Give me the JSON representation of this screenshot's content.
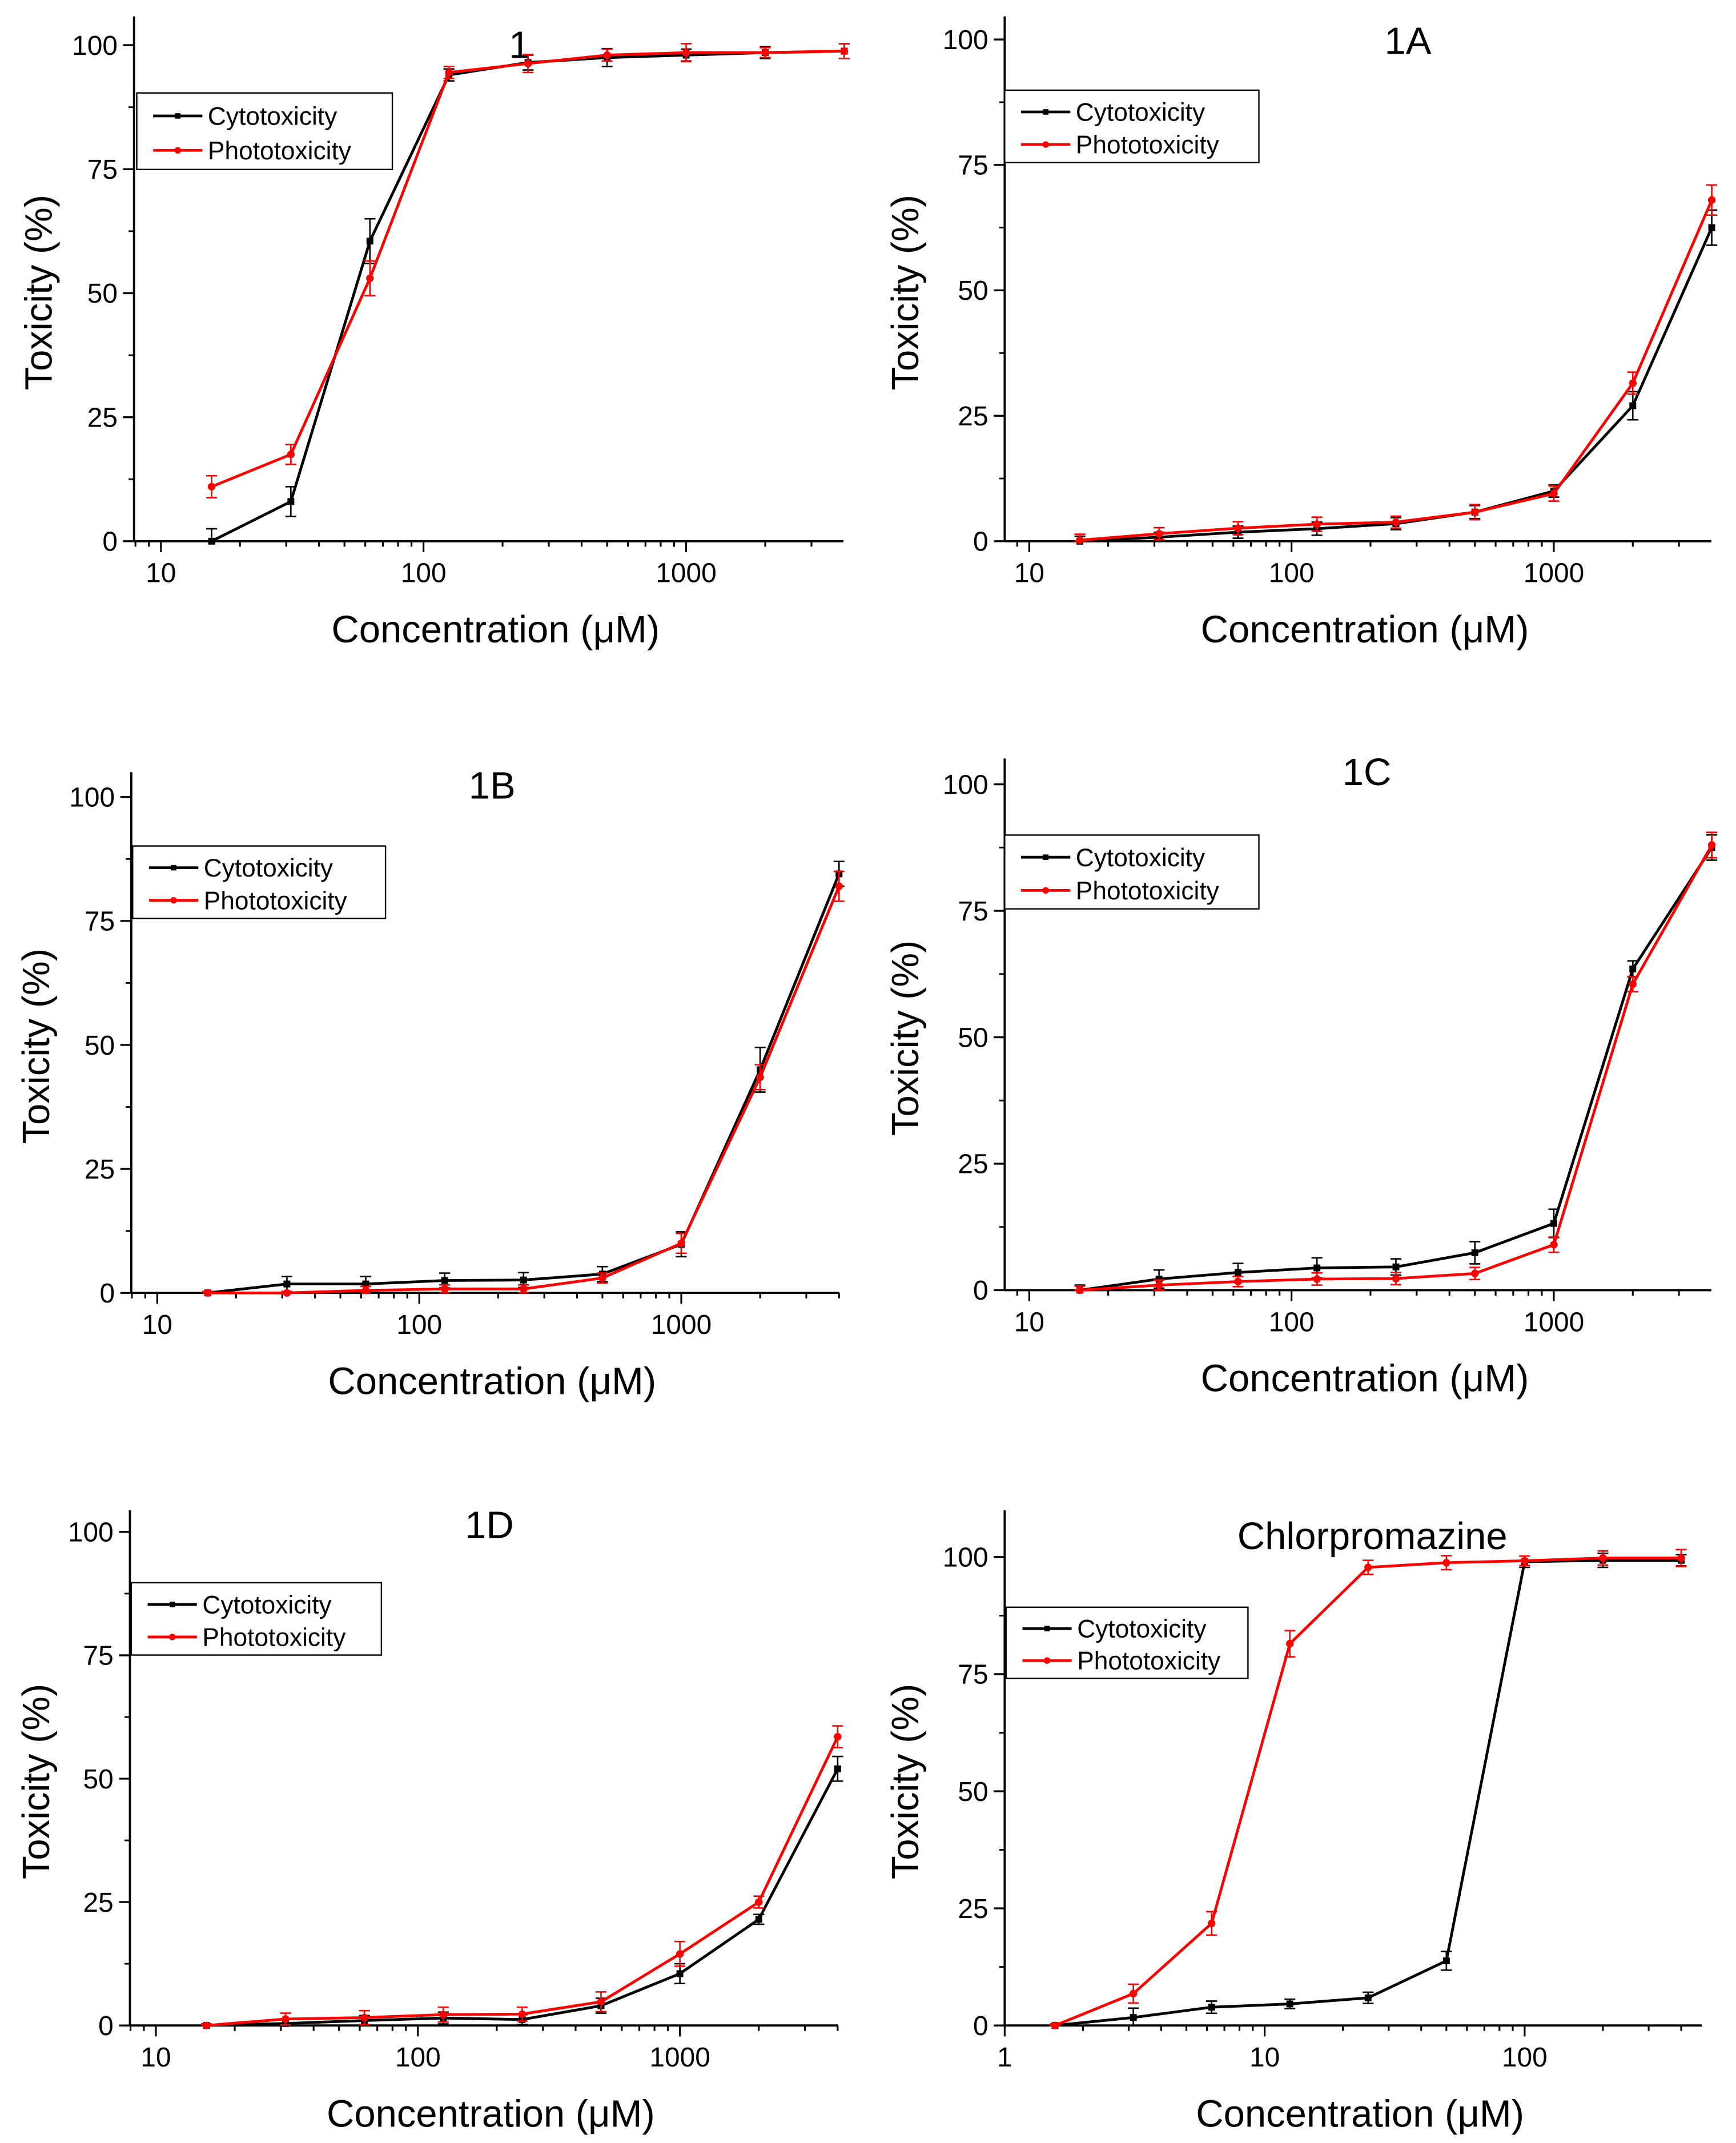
{
  "colors": {
    "cytotoxicity": "#000000",
    "phototoxicity": "#ff0000"
  },
  "chart_data": [
    {
      "type": "line",
      "title": "1",
      "xlabel": "Concentration (μM)",
      "ylabel": "Toxicity (%)",
      "xscale": "log",
      "xlim": [
        7.9,
        3970
      ],
      "ylim": [
        0,
        105.8
      ],
      "xticks": [
        10,
        100,
        1000
      ],
      "xtick_labels": [
        "10",
        "100",
        "1000"
      ],
      "yticks": [
        0,
        25,
        50,
        75,
        100
      ],
      "ytick_labels": [
        "0",
        "25",
        "50",
        "75",
        "100"
      ],
      "legend": "top-left",
      "x": [
        15.6,
        31.25,
        62.5,
        125,
        250,
        500,
        1000,
        2000,
        4000
      ],
      "series": [
        {
          "name": "Cytotoxicity",
          "values": [
            0,
            8,
            60.5,
            94,
            96.5,
            97.5,
            98,
            98.5,
            98.8
          ],
          "errors": [
            2.5,
            3,
            4.5,
            1.2,
            1.5,
            1.8,
            1.2,
            1.2,
            1.5
          ]
        },
        {
          "name": "Phototoxicity",
          "values": [
            11,
            17.5,
            53,
            94.5,
            96.3,
            98,
            98.5,
            98.5,
            98.8
          ],
          "errors": [
            2.2,
            2,
            3.5,
            1.2,
            1.8,
            1.2,
            1.8,
            1,
            1.5
          ]
        }
      ]
    },
    {
      "type": "line",
      "title": "1A",
      "xlabel": "Concentration (μM)",
      "ylabel": "Toxicity (%)",
      "xscale": "log",
      "xlim": [
        8.06,
        3985
      ],
      "ylim": [
        0,
        104.6
      ],
      "xticks": [
        10,
        100,
        1000
      ],
      "xtick_labels": [
        "10",
        "100",
        "1000"
      ],
      "yticks": [
        0,
        25,
        50,
        75,
        100
      ],
      "ytick_labels": [
        "0",
        "25",
        "50",
        "75",
        "100"
      ],
      "legend": "top-left",
      "x": [
        15.6,
        31.25,
        62.5,
        125,
        250,
        500,
        1000,
        2000,
        4000
      ],
      "series": [
        {
          "name": "Cytotoxicity",
          "values": [
            0,
            0.8,
            1.8,
            2.5,
            3.5,
            5.8,
            10,
            27,
            62.5
          ],
          "errors": [
            1,
            1,
            1.2,
            1.3,
            1.2,
            1.3,
            1.2,
            2.8,
            3.5
          ]
        },
        {
          "name": "Phototoxicity",
          "values": [
            0.2,
            1.5,
            2.6,
            3.4,
            3.8,
            5.8,
            9.5,
            31.5,
            68
          ],
          "errors": [
            1.2,
            1.2,
            1.3,
            1.4,
            1.2,
            1.5,
            1.5,
            2.2,
            3
          ]
        }
      ]
    },
    {
      "type": "line",
      "title": "1B",
      "xlabel": "Concentration (μM)",
      "ylabel": "Toxicity (%)",
      "xscale": "log",
      "xlim": [
        7.96,
        4010
      ],
      "ylim": [
        0,
        105
      ],
      "xticks": [
        10,
        100,
        1000
      ],
      "xtick_labels": [
        "10",
        "100",
        "1000"
      ],
      "yticks": [
        0,
        25,
        50,
        75,
        100
      ],
      "ytick_labels": [
        "0",
        "25",
        "50",
        "75",
        "100"
      ],
      "legend": "top-left",
      "x": [
        15.6,
        31.25,
        62.5,
        125,
        250,
        500,
        1000,
        2000,
        4000
      ],
      "series": [
        {
          "name": "Cytotoxicity",
          "values": [
            0,
            1.8,
            1.8,
            2.5,
            2.6,
            3.8,
            9.8,
            45,
            84.5
          ],
          "errors": [
            0.3,
            1.5,
            1.5,
            1.5,
            1.5,
            1.5,
            2.5,
            4.5,
            2.5
          ]
        },
        {
          "name": "Phototoxicity",
          "values": [
            0,
            0,
            0.5,
            0.8,
            0.8,
            3,
            10,
            43.5,
            82
          ],
          "errors": [
            0.3,
            0.3,
            0.8,
            0.8,
            0.8,
            1,
            2,
            2.5,
            3
          ]
        }
      ]
    },
    {
      "type": "line",
      "title": "1C",
      "xlabel": "Concentration (μM)",
      "ylabel": "Toxicity (%)",
      "xscale": "log",
      "xlim": [
        8.06,
        3985
      ],
      "ylim": [
        0,
        105.1
      ],
      "xticks": [
        10,
        100,
        1000
      ],
      "xtick_labels": [
        "10",
        "100",
        "1000"
      ],
      "yticks": [
        0,
        25,
        50,
        75,
        100
      ],
      "ytick_labels": [
        "0",
        "25",
        "50",
        "75",
        "100"
      ],
      "legend": "top-left",
      "x": [
        15.6,
        31.25,
        62.5,
        125,
        250,
        500,
        1000,
        2000,
        4000
      ],
      "series": [
        {
          "name": "Cytotoxicity",
          "values": [
            0,
            2.2,
            3.5,
            4.4,
            4.6,
            7.4,
            13.2,
            63.5,
            87.5
          ],
          "errors": [
            1,
            1.8,
            1.8,
            2,
            1.6,
            2.2,
            2.8,
            1.6,
            2.5
          ]
        },
        {
          "name": "Phototoxicity",
          "values": [
            0,
            1,
            1.7,
            2.2,
            2.3,
            3.3,
            9,
            60.5,
            88
          ],
          "errors": [
            0.8,
            1,
            1,
            1.2,
            1.2,
            1.2,
            1.5,
            1.5,
            2.5
          ]
        }
      ]
    },
    {
      "type": "line",
      "title": "1D",
      "xlabel": "Concentration (μM)",
      "ylabel": "Toxicity (%)",
      "xscale": "log",
      "xlim": [
        7.96,
        4010
      ],
      "ylim": [
        0,
        104.4
      ],
      "xticks": [
        10,
        100,
        1000
      ],
      "xtick_labels": [
        "10",
        "100",
        "1000"
      ],
      "yticks": [
        0,
        25,
        50,
        75,
        100
      ],
      "ytick_labels": [
        "0",
        "25",
        "50",
        "75",
        "100"
      ],
      "legend": "top-left",
      "x": [
        15.6,
        31.25,
        62.5,
        125,
        250,
        500,
        1000,
        2000,
        4000
      ],
      "series": [
        {
          "name": "Cytotoxicity",
          "values": [
            0,
            0.4,
            1,
            1.5,
            1.2,
            4,
            10.5,
            21.5,
            52
          ],
          "errors": [
            0.3,
            0.8,
            1,
            1.2,
            1,
            1.5,
            2,
            1,
            2.5
          ]
        },
        {
          "name": "Phototoxicity",
          "values": [
            0,
            1.3,
            1.6,
            2.2,
            2.3,
            4.8,
            14.5,
            25,
            58.5
          ],
          "errors": [
            0.3,
            1.2,
            1.4,
            1.5,
            1.4,
            2,
            2.5,
            1.2,
            2.2
          ]
        }
      ]
    },
    {
      "type": "line",
      "title": "Chlorpromazine",
      "xlabel": "Concentration (μM)",
      "ylabel": "Toxicity (%)",
      "xscale": "log",
      "xlim": [
        1,
        480
      ],
      "ylim": [
        0,
        110
      ],
      "xticks": [
        1,
        10,
        100
      ],
      "xtick_labels": [
        "1",
        "10",
        "100"
      ],
      "yticks": [
        0,
        25,
        50,
        75,
        100
      ],
      "ytick_labels": [
        "0",
        "25",
        "50",
        "75",
        "100"
      ],
      "legend": "top-left",
      "x": [
        1.5625,
        3.125,
        6.25,
        12.5,
        25,
        50,
        100,
        200,
        400
      ],
      "series": [
        {
          "name": "Cytotoxicity",
          "values": [
            0,
            1.7,
            3.9,
            4.6,
            5.9,
            13.8,
            99,
            99.3,
            99.3
          ],
          "errors": [
            0.3,
            2,
            1.3,
            1,
            1.2,
            2,
            1.2,
            1.5,
            1.2
          ]
        },
        {
          "name": "Phototoxicity",
          "values": [
            0,
            6.8,
            21.8,
            81.5,
            97.8,
            98.8,
            99.2,
            99.8,
            99.8
          ],
          "errors": [
            0.3,
            2,
            2.5,
            2.8,
            1.5,
            1.5,
            1,
            1.5,
            1.8
          ]
        }
      ]
    }
  ]
}
